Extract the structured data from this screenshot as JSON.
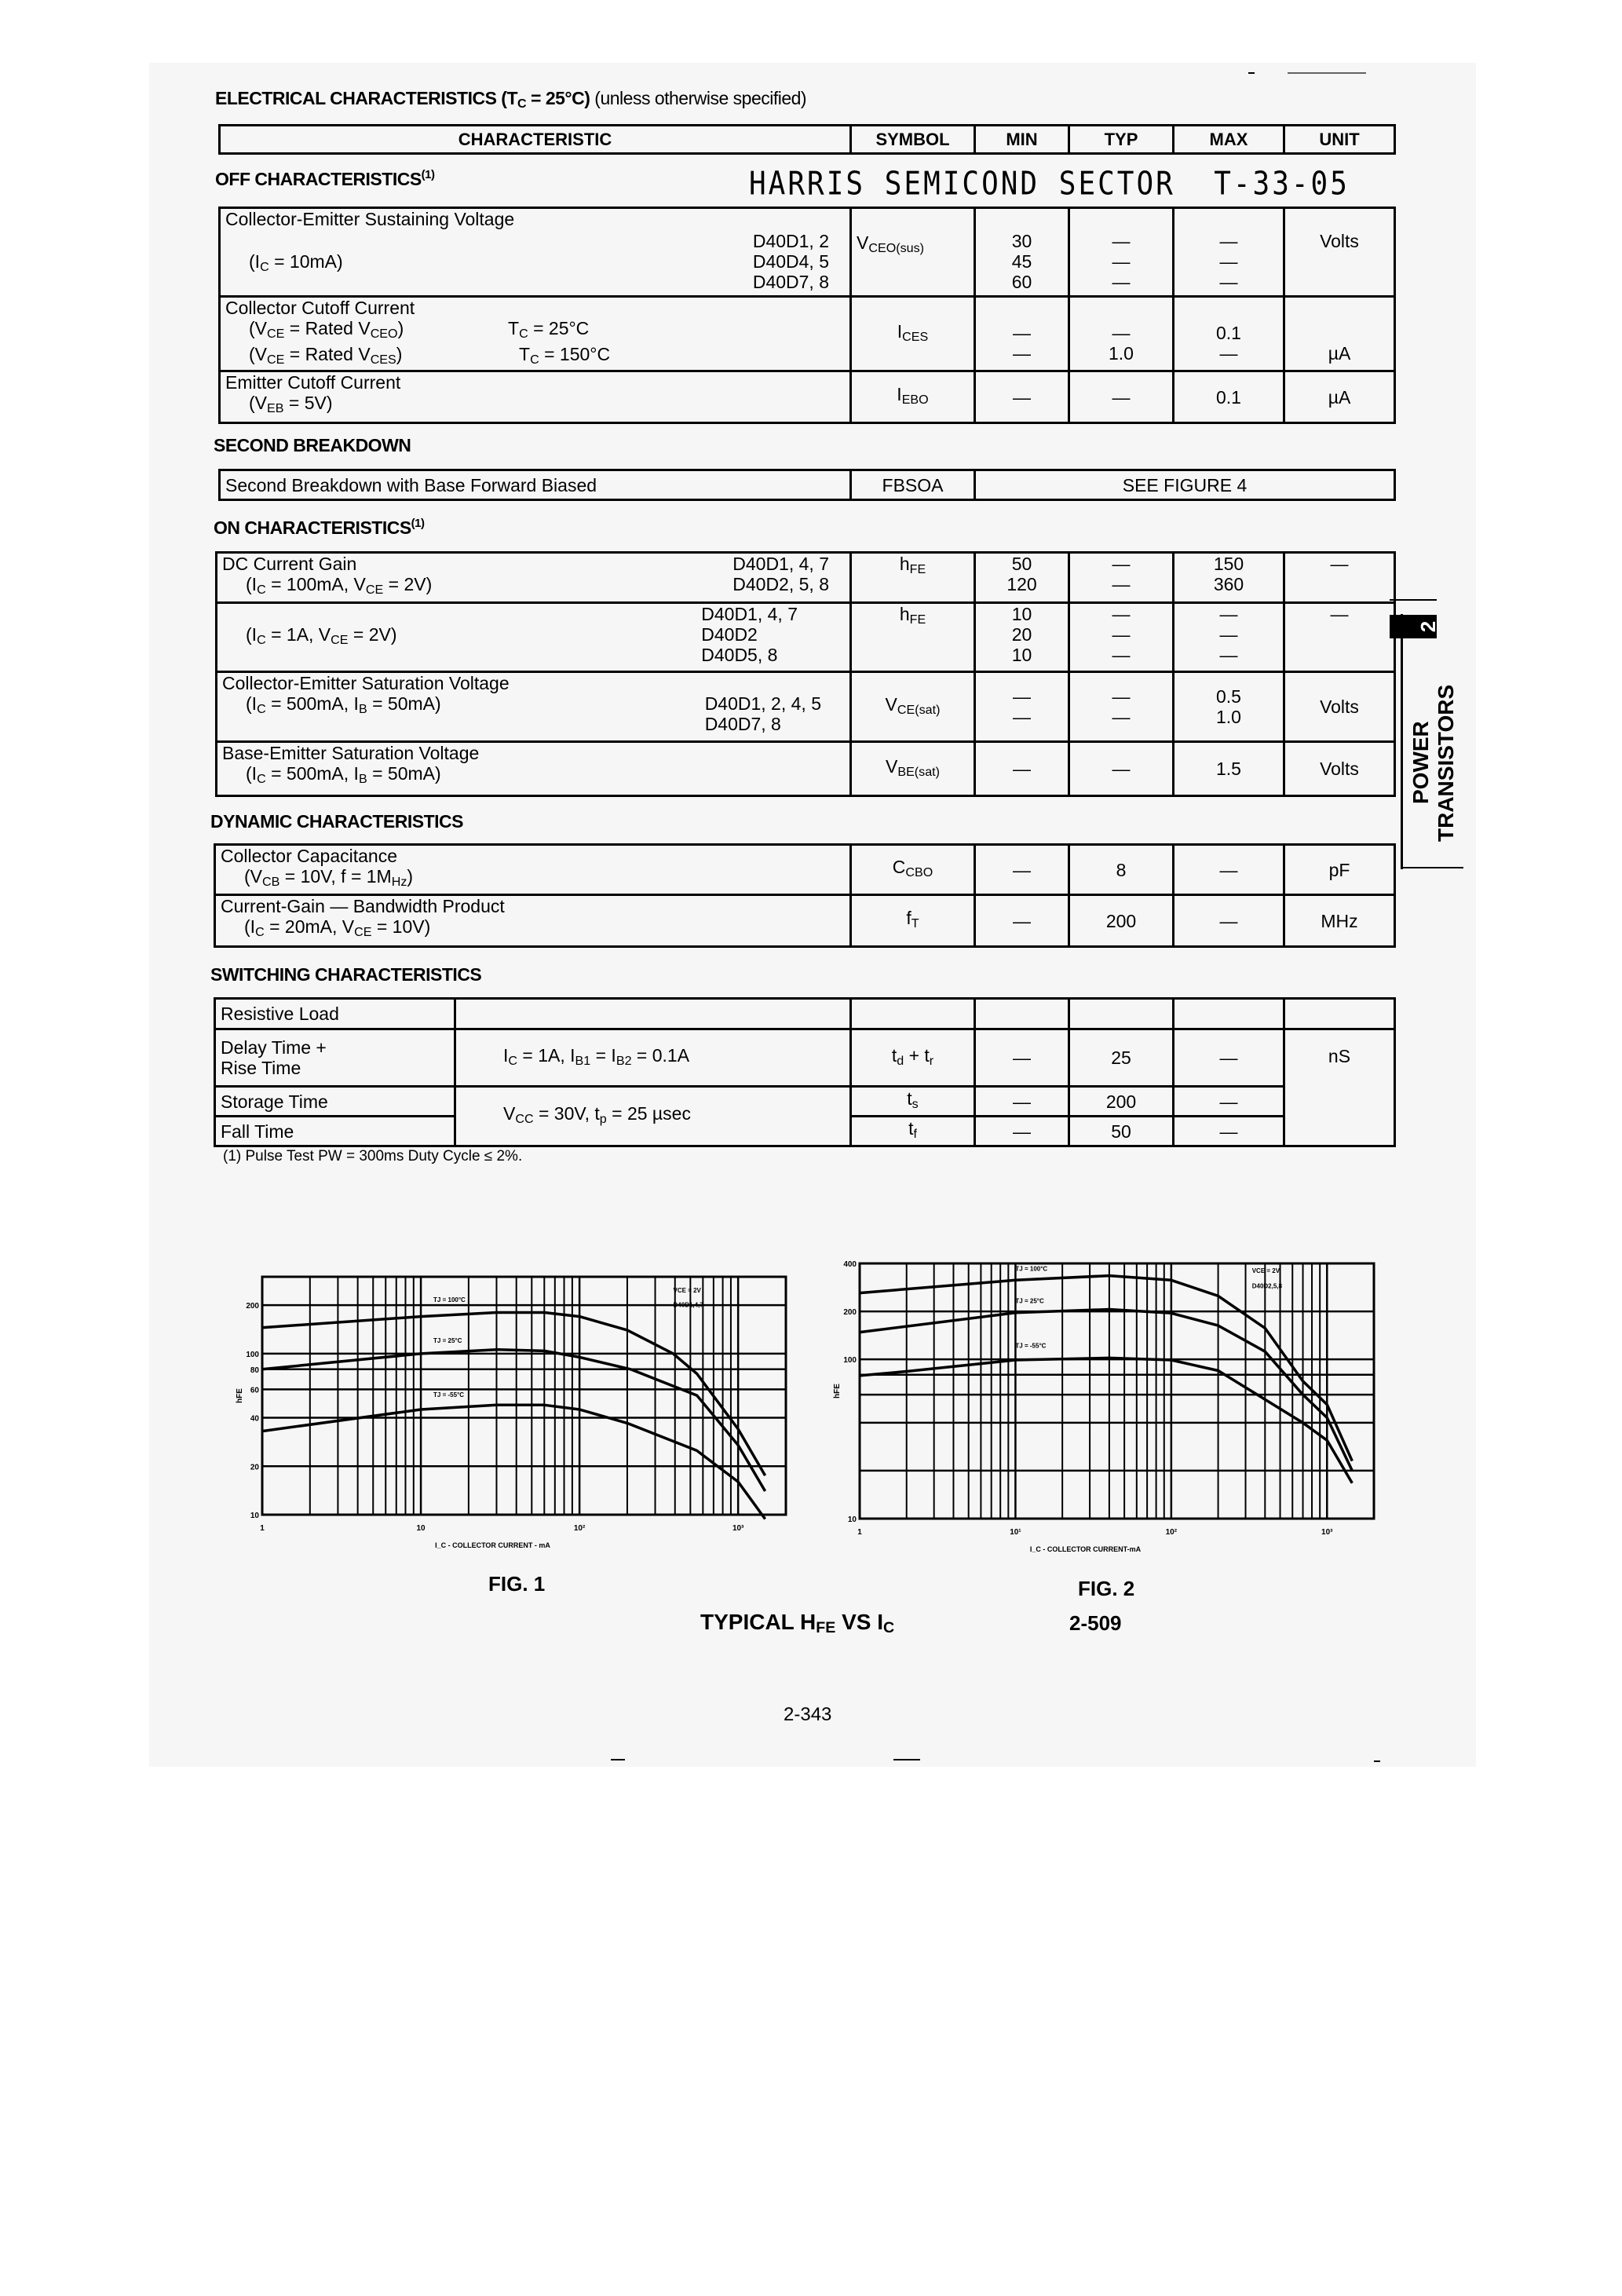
{
  "title": {
    "bold": "ELECTRICAL CHARACTERISTICS (T_{C} = 25°C)",
    "normal": "(unless otherwise specified)"
  },
  "header": {
    "characteristic": "CHARACTERISTIC",
    "symbol": "SYMBOL",
    "min": "MIN",
    "typ": "TYP",
    "max": "MAX",
    "unit": "UNIT"
  },
  "stamp": {
    "text": "HARRIS SEMICOND SECTOR",
    "code": "T-33-05"
  },
  "off": {
    "heading": "OFF CHARACTERISTICS",
    "heading_note": "(1)",
    "rows": [
      {
        "name": "Collector-Emitter Sustaining Voltage",
        "cond": "(I_{C} = 10mA)",
        "devices": [
          "D40D1, 2",
          "D40D4, 5",
          "D40D7, 8"
        ],
        "symbol": "V_{CEO(sus)}",
        "min": [
          "30",
          "45",
          "60"
        ],
        "typ": [
          "—",
          "—",
          "—"
        ],
        "max": [
          "—",
          "—",
          "—"
        ],
        "unit": "Volts"
      },
      {
        "name": "Collector Cutoff Current",
        "conds": [
          "(V_{CE} = Rated V_{CEO})",
          "(V_{CE} = Rated V_{CES})"
        ],
        "temps": [
          "T_{C} = 25°C",
          "T_{C} = 150°C"
        ],
        "symbol": "I_{CES}",
        "min": [
          "—",
          "—"
        ],
        "typ": [
          "—",
          "1.0"
        ],
        "max": [
          "0.1",
          "—"
        ],
        "unit": "µA"
      },
      {
        "name": "Emitter Cutoff Current",
        "cond": "(V_{EB} = 5V)",
        "symbol": "I_{EBO}",
        "min": "—",
        "typ": "—",
        "max": "0.1",
        "unit": "µA"
      }
    ]
  },
  "second": {
    "heading": "SECOND BREAKDOWN",
    "name": "Second Breakdown with Base Forward Biased",
    "symbol": "FBSOA",
    "value": "SEE FIGURE 4"
  },
  "on": {
    "heading": "ON CHARACTERISTICS",
    "heading_note": "(1)",
    "rows": [
      {
        "name": "DC Current Gain",
        "cond": "(I_{C} = 100mA, V_{CE} = 2V)",
        "devices": [
          "D40D1, 4, 7",
          "D40D2, 5, 8"
        ],
        "symbol": "h_{FE}",
        "min": [
          "50",
          "120"
        ],
        "typ": [
          "—",
          "—"
        ],
        "max": [
          "150",
          "360"
        ],
        "unit": "—"
      },
      {
        "cond": "(I_{C} = 1A, V_{CE} = 2V)",
        "devices": [
          "D40D1, 4, 7",
          "D40D2",
          "D40D5, 8"
        ],
        "symbol": "h_{FE}",
        "min": [
          "10",
          "20",
          "10"
        ],
        "typ": [
          "—",
          "—",
          "—"
        ],
        "max": [
          "—",
          "—",
          "—"
        ],
        "unit": "—"
      },
      {
        "name": "Collector-Emitter Saturation Voltage",
        "cond": "(I_{C} = 500mA, I_{B} = 50mA)",
        "devices": [
          "D40D1, 2, 4, 5",
          "D40D7, 8"
        ],
        "symbol": "V_{CE(sat)}",
        "min": [
          "—",
          "—"
        ],
        "typ": [
          "—",
          "—"
        ],
        "max": [
          "0.5",
          "1.0"
        ],
        "unit": "Volts"
      },
      {
        "name": "Base-Emitter Saturation Voltage",
        "cond": "(I_{C} = 500mA, I_{B} = 50mA)",
        "symbol": "V_{BE(sat)}",
        "min": "—",
        "typ": "—",
        "max": "1.5",
        "unit": "Volts"
      }
    ]
  },
  "dynamic": {
    "heading": "DYNAMIC CHARACTERISTICS",
    "rows": [
      {
        "name": "Collector Capacitance",
        "cond": "(V_{CB} = 10V, f = 1M_{Hz})",
        "symbol": "C_{CBO}",
        "min": "—",
        "typ": "8",
        "max": "—",
        "unit": "pF"
      },
      {
        "name": "Current-Gain — Bandwidth Product",
        "cond": "(I_{C} = 20mA, V_{CE} = 10V)",
        "symbol": "f_{T}",
        "min": "—",
        "typ": "200",
        "max": "—",
        "unit": "MHz"
      }
    ]
  },
  "switching": {
    "heading": "SWITCHING CHARACTERISTICS",
    "load": "Resistive Load",
    "delay_rise": [
      "Delay Time +",
      "Rise Time"
    ],
    "cond1": "I_{C} = 1A, I_{B1} = I_{B2} = 0.1A",
    "cond2": "V_{CC} = 30V, t_{p} = 25 µsec",
    "unit": "nS",
    "rows": [
      {
        "symbol": "t_{d} + t_{r}",
        "min": "—",
        "typ": "25",
        "max": "—"
      },
      {
        "name": "Storage Time",
        "symbol": "t_{s}",
        "min": "—",
        "typ": "200",
        "max": "—"
      },
      {
        "name": "Fall Time",
        "symbol": "t_{f}",
        "min": "—",
        "typ": "50",
        "max": "—"
      }
    ],
    "footnote": "(1) Pulse Test PW = 300ms Duty Cycle ≤ 2%."
  },
  "side_tab": {
    "number": "2",
    "line1": "POWER",
    "line2": "TRANSISTORS"
  },
  "figures": {
    "fig1_label": "FIG. 1",
    "fig2_label": "FIG. 2",
    "caption": "TYPICAL H_{FE} VS I_{C}",
    "ref": "2-509"
  },
  "page_number": "2-343",
  "chart_data": [
    {
      "type": "line",
      "title": "",
      "xlabel": "I_C - COLLECTOR CURRENT - mA",
      "ylabel": "hFE",
      "xscale": "log",
      "yscale": "log",
      "xlim": [
        1,
        2000
      ],
      "ylim": [
        10,
        300
      ],
      "xticks": [
        1,
        10,
        100,
        1000
      ],
      "xtick_labels": [
        "1",
        "10",
        "10²",
        "10³"
      ],
      "yticks": [
        200,
        100,
        80,
        60,
        40,
        20,
        10
      ],
      "ytick_labels": [
        "200",
        "100",
        "80",
        "60",
        "40",
        "20",
        "10"
      ],
      "grid": true,
      "annotations": [
        "VCE = 2V",
        "D40D1,4,7"
      ],
      "series": [
        {
          "name": "TJ = 100°C",
          "x": [
            1,
            10,
            30,
            60,
            100,
            200,
            390,
            550,
            1000,
            1480
          ],
          "y": [
            145,
            170,
            180,
            180,
            170,
            140,
            100,
            75,
            34,
            17.5
          ]
        },
        {
          "name": "TJ = 25°C",
          "x": [
            1,
            10,
            30,
            60,
            100,
            210,
            550,
            1000,
            1480
          ],
          "y": [
            80,
            100,
            106,
            104,
            95,
            80,
            55,
            27,
            14
          ]
        },
        {
          "name": "TJ = -55°C",
          "x": [
            1,
            10,
            30,
            60,
            100,
            200,
            550,
            1000,
            1480
          ],
          "y": [
            33,
            45,
            48,
            48,
            45,
            37,
            25,
            16,
            9.4
          ]
        }
      ]
    },
    {
      "type": "line",
      "title": "",
      "xlabel": "I_C - COLLECTOR CURRENT-mA",
      "ylabel": "hFE",
      "xscale": "log",
      "yscale": "log",
      "xlim": [
        1,
        2000
      ],
      "ylim": [
        10,
        400
      ],
      "xticks": [
        1,
        10,
        100,
        1000
      ],
      "xtick_labels": [
        "1",
        "10¹",
        "10²",
        "10³"
      ],
      "yticks": [
        400,
        200,
        100,
        10
      ],
      "ytick_labels": [
        "400",
        "200",
        "100",
        "10"
      ],
      "grid": true,
      "annotations": [
        "VCE = 2V",
        "D40D2,5,8"
      ],
      "series": [
        {
          "name": "TJ = 100°C",
          "x": [
            1,
            10,
            40,
            100,
            200,
            400,
            700,
            1000,
            1450
          ],
          "y": [
            261,
            314,
            335,
            314,
            250,
            157,
            73,
            52,
            23
          ]
        },
        {
          "name": "TJ = 25°C",
          "x": [
            1,
            10,
            40,
            100,
            200,
            400,
            700,
            1000,
            1450
          ],
          "y": [
            148,
            196,
            206,
            195,
            163,
            112,
            60,
            43,
            20
          ]
        },
        {
          "name": "TJ = -55°C",
          "x": [
            1,
            2,
            10,
            40,
            100,
            200,
            400,
            700,
            1000,
            1450
          ],
          "y": [
            79,
            84,
            99,
            102,
            99,
            85,
            56,
            40,
            31,
            16.7
          ]
        }
      ]
    }
  ]
}
